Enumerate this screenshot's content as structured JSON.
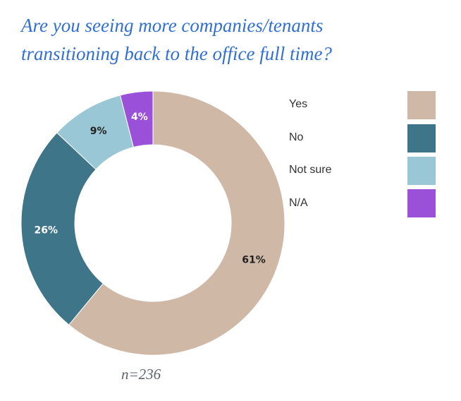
{
  "chart_data": {
    "type": "pie",
    "donut": true,
    "title_lines": [
      "Are you seeing more companies/tenants",
      "transitioning back to the office full time?"
    ],
    "categories": [
      "Yes",
      "No",
      "Not sure",
      "N/A"
    ],
    "values": [
      61,
      26,
      9,
      4
    ],
    "value_labels": [
      "61%",
      "26%",
      "9%",
      "4%"
    ],
    "colors": [
      "#cfb8a6",
      "#3e7589",
      "#9ac7d5",
      "#9b50d9"
    ],
    "label_colors": [
      "#222222",
      "#ffffff",
      "#222222",
      "#ffffff"
    ],
    "legend_position": "right",
    "sample_note": "n=236"
  }
}
